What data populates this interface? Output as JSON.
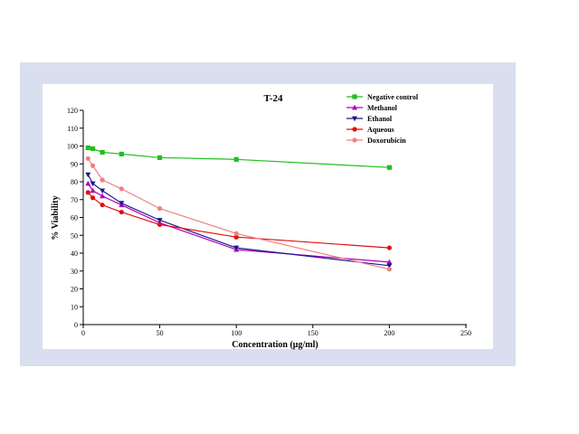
{
  "chart_data": {
    "type": "line",
    "title": "T-24",
    "xlabel": "Concentration (μg/ml)",
    "ylabel": "% Viability",
    "xlim": [
      0,
      250
    ],
    "ylim": [
      0,
      120
    ],
    "xticks": [
      0,
      50,
      100,
      150,
      200,
      250
    ],
    "yticks": [
      0,
      10,
      20,
      30,
      40,
      50,
      60,
      70,
      80,
      90,
      100,
      110,
      120
    ],
    "grid": false,
    "legend_position": "top-right",
    "series": [
      {
        "name": "Negative control",
        "color": "#1fbf1f",
        "marker": "square",
        "x": [
          3.125,
          6.25,
          12.5,
          25,
          50,
          100,
          200
        ],
        "y": [
          99,
          98.5,
          96.5,
          95.5,
          93.5,
          92.5,
          88
        ]
      },
      {
        "name": "Methanol",
        "color": "#b000c0",
        "marker": "triangle-up",
        "x": [
          3.125,
          6.25,
          12.5,
          25,
          50,
          100,
          200
        ],
        "y": [
          79,
          75,
          72,
          67,
          57,
          42,
          35
        ]
      },
      {
        "name": "Ethanol",
        "color": "#1a1a8c",
        "marker": "triangle-down",
        "x": [
          3.125,
          6.25,
          12.5,
          25,
          50,
          100,
          200
        ],
        "y": [
          84,
          79,
          75,
          68,
          58.5,
          43,
          33
        ]
      },
      {
        "name": "Aqueous",
        "color": "#e01010",
        "marker": "circle",
        "x": [
          3.125,
          6.25,
          12.5,
          25,
          50,
          100,
          200
        ],
        "y": [
          74,
          71,
          67,
          63,
          56,
          49,
          43
        ]
      },
      {
        "name": "Doxorubicin",
        "color": "#f08080",
        "marker": "circle",
        "x": [
          3.125,
          6.25,
          12.5,
          25,
          50,
          100,
          200
        ],
        "y": [
          93,
          89,
          81,
          76,
          65,
          51,
          31
        ]
      }
    ]
  }
}
